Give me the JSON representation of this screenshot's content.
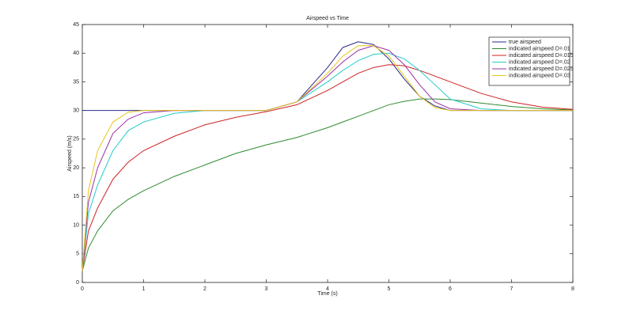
{
  "chart_data": {
    "type": "line",
    "title": "Airspeed vs Time",
    "x_label": "Time (s)",
    "y_label": "Airspeed (m/s)",
    "x": [
      0,
      0.1,
      0.25,
      0.5,
      0.75,
      1,
      1.5,
      2,
      2.5,
      3,
      3.5,
      4,
      4.25,
      4.5,
      4.75,
      5,
      5.25,
      5.5,
      5.75,
      6,
      6.5,
      7,
      7.5,
      8
    ],
    "series": [
      {
        "name": "true airspeed",
        "color": "#2b2b8c",
        "values": [
          30,
          30,
          30,
          30,
          30,
          30,
          30,
          30,
          30,
          30,
          31.5,
          37.5,
          41,
          42,
          41.5,
          39,
          35.5,
          32.5,
          30.8,
          30,
          30,
          30,
          30,
          30
        ]
      },
      {
        "name": "indicated airspeed D=.01",
        "color": "#2e8b2e",
        "values": [
          2,
          6,
          9,
          12.5,
          14.5,
          16,
          18.5,
          20.5,
          22.5,
          24,
          25.3,
          27,
          28,
          29,
          30,
          31,
          31.6,
          32,
          32,
          31.9,
          31.3,
          30.7,
          30.3,
          30.1
        ]
      },
      {
        "name": "indicated airspeed D=.015",
        "color": "#cc2222",
        "values": [
          2,
          9,
          13,
          18,
          21,
          23,
          25.5,
          27.5,
          28.8,
          29.8,
          31,
          33.5,
          35,
          36.5,
          37.5,
          38,
          37.8,
          37,
          36,
          35,
          33,
          31.5,
          30.6,
          30.2
        ]
      },
      {
        "name": "indicated airspeed D=.02",
        "color": "#22cccc",
        "values": [
          2,
          12,
          17,
          23,
          26.5,
          28,
          29.5,
          30,
          30,
          30,
          31.5,
          35,
          37,
          38.7,
          39.8,
          40,
          39,
          37,
          34.5,
          32,
          30.3,
          30,
          30,
          30
        ]
      },
      {
        "name": "indicated airspeed D=.025",
        "color": "#9b30a8",
        "values": [
          2,
          14,
          20,
          26,
          28.5,
          29.6,
          30,
          30,
          30,
          30,
          31.5,
          36,
          38.5,
          40.5,
          41.3,
          40.5,
          38,
          34.5,
          31.5,
          30.3,
          30,
          30,
          30,
          30
        ]
      },
      {
        "name": "indicated airspeed D=.03",
        "color": "#e6c619",
        "values": [
          2,
          16,
          23,
          28,
          29.7,
          30,
          30,
          30,
          30,
          30,
          31.5,
          36.5,
          39.5,
          41.3,
          41.3,
          39.5,
          36,
          32.5,
          30.5,
          30,
          30,
          30,
          30,
          30
        ]
      }
    ],
    "xlim": [
      0,
      8
    ],
    "xticks": [
      0,
      1,
      2,
      3,
      4,
      5,
      6,
      7,
      8
    ],
    "ylim": [
      0,
      45
    ],
    "yticks": [
      0,
      5,
      10,
      15,
      20,
      25,
      30,
      35,
      40,
      45
    ],
    "grid": false,
    "legend_position": "top-right"
  }
}
